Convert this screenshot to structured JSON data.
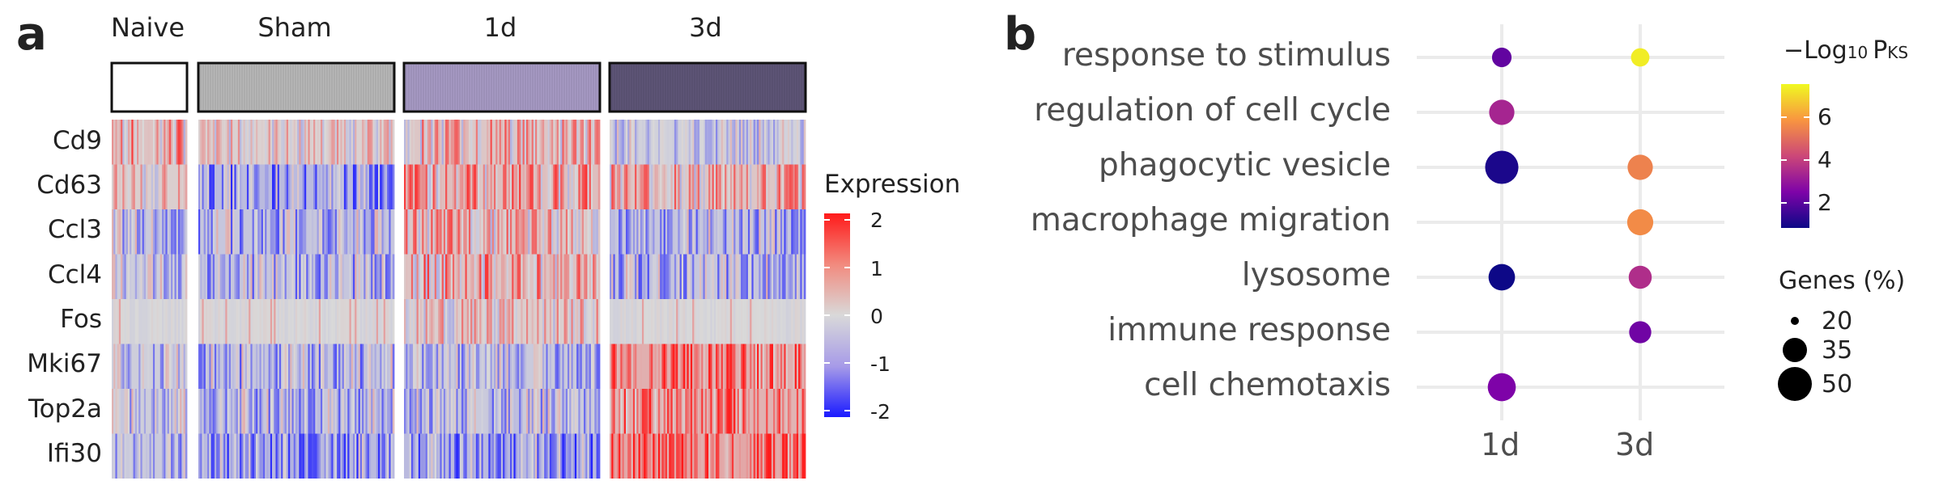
{
  "panel_a": {
    "letter": "a",
    "groups": [
      {
        "label": "Naive",
        "color": "#ffffff"
      },
      {
        "label": "Sham",
        "color": "#b8b8b8"
      },
      {
        "label": "1d",
        "color": "#a79ac4"
      },
      {
        "label": "3d",
        "color": "#5e5577"
      }
    ],
    "genes": [
      "Cd9",
      "Cd63",
      "Ccl3",
      "Ccl4",
      "Fos",
      "Mki67",
      "Top2a",
      "Ifi30"
    ],
    "legend": {
      "title": "Expression",
      "ticks": [
        "2",
        "1",
        "0",
        "-1",
        "-2"
      ],
      "colors": {
        "high": "#ff1a1a",
        "mid": "#d9d9d9",
        "low": "#1a1aff"
      }
    }
  },
  "panel_b": {
    "letter": "b",
    "color_legend": {
      "title_main": "−Log",
      "title_sub": "10",
      "title_p": "P",
      "title_ks": "KS",
      "ticks": [
        "6",
        "4",
        "2"
      ]
    },
    "size_legend": {
      "title": "Genes (%)",
      "entries": [
        "20",
        "35",
        "50"
      ]
    }
  },
  "chart_data": [
    {
      "type": "heatmap",
      "rows": [
        "Cd9",
        "Cd63",
        "Ccl3",
        "Ccl4",
        "Fos",
        "Mki67",
        "Top2a",
        "Ifi30"
      ],
      "column_groups": [
        "Naive",
        "Sham",
        "1d",
        "3d"
      ],
      "color_scale": {
        "min": -2,
        "max": 2,
        "label": "Expression"
      },
      "approx_mean_by_group": {
        "Naive": [
          0.6,
          0.3,
          -0.4,
          -0.3,
          0.0,
          -0.3,
          -0.3,
          -0.4
        ],
        "Sham": [
          0.2,
          -0.8,
          -0.5,
          -0.5,
          0.0,
          -0.5,
          -0.5,
          -0.8
        ],
        "1d": [
          0.5,
          0.7,
          0.5,
          0.6,
          0.3,
          -0.4,
          -0.4,
          -0.8
        ],
        "3d": [
          -0.2,
          0.5,
          -0.5,
          -0.5,
          0.0,
          1.1,
          1.0,
          1.3
        ]
      }
    },
    {
      "type": "scatter",
      "x_categories": [
        "1d",
        "3d"
      ],
      "y_categories": [
        "response to stimulus",
        "regulation of cell cycle",
        "phagocytic vesicle",
        "macrophage migration",
        "lysosome",
        "immune response",
        "cell chemotaxis"
      ],
      "color_label": "−Log10 PKS",
      "size_label": "Genes (%)",
      "points": [
        {
          "x": "1d",
          "y": "response to stimulus",
          "neglog10p": 2.2,
          "genes_pct": 18
        },
        {
          "x": "3d",
          "y": "response to stimulus",
          "neglog10p": 7.2,
          "genes_pct": 16
        },
        {
          "x": "1d",
          "y": "regulation of cell cycle",
          "neglog10p": 3.4,
          "genes_pct": 30
        },
        {
          "x": "1d",
          "y": "phagocytic vesicle",
          "neglog10p": 1.2,
          "genes_pct": 52
        },
        {
          "x": "3d",
          "y": "phagocytic vesicle",
          "neglog10p": 5.4,
          "genes_pct": 30
        },
        {
          "x": "3d",
          "y": "macrophage migration",
          "neglog10p": 5.6,
          "genes_pct": 32
        },
        {
          "x": "1d",
          "y": "lysosome",
          "neglog10p": 1.0,
          "genes_pct": 33
        },
        {
          "x": "3d",
          "y": "lysosome",
          "neglog10p": 3.6,
          "genes_pct": 25
        },
        {
          "x": "3d",
          "y": "immune response",
          "neglog10p": 2.4,
          "genes_pct": 23
        },
        {
          "x": "1d",
          "y": "cell chemotaxis",
          "neglog10p": 2.6,
          "genes_pct": 37
        }
      ],
      "color_range": [
        1,
        7.4
      ]
    }
  ]
}
